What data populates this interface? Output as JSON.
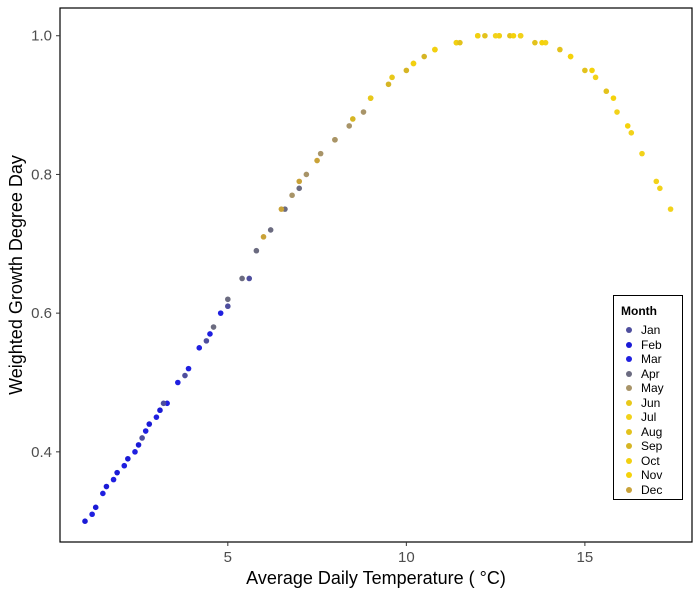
{
  "chart_data": {
    "type": "scatter",
    "title": "",
    "xlabel": "Average Daily Temperature ( °C)",
    "ylabel": "Weighted Growth Degree Day",
    "xlim": [
      0.3,
      18.0
    ],
    "ylim": [
      0.27,
      1.04
    ],
    "x_ticks": [
      5,
      10,
      15
    ],
    "x_tick_labels": [
      "5",
      "10",
      "15"
    ],
    "y_ticks": [
      0.4,
      0.6,
      0.8,
      1.0
    ],
    "y_tick_labels": [
      "0.4",
      "0.6",
      "0.8",
      "1.0"
    ],
    "grid": false,
    "legend_position": "right",
    "legend": {
      "title": "Month",
      "items": [
        {
          "name": "Jan",
          "color": "#4e4e9e"
        },
        {
          "name": "Feb",
          "color": "#1a1ad6"
        },
        {
          "name": "Mar",
          "color": "#1f1fe0"
        },
        {
          "name": "Apr",
          "color": "#6b6b80"
        },
        {
          "name": "May",
          "color": "#a89468"
        },
        {
          "name": "Jun",
          "color": "#e8c81a"
        },
        {
          "name": "Jul",
          "color": "#f2d21a"
        },
        {
          "name": "Aug",
          "color": "#e3c21c"
        },
        {
          "name": "Sep",
          "color": "#d6b524"
        },
        {
          "name": "Oct",
          "color": "#f2d010"
        },
        {
          "name": "Nov",
          "color": "#f5d20a"
        },
        {
          "name": "Dec",
          "color": "#c9a238"
        }
      ]
    },
    "series": [
      {
        "name": "Feb",
        "color": "#1a1ad6",
        "x": [
          1.0,
          1.3,
          1.6,
          1.9,
          2.2,
          2.5,
          2.8,
          3.1
        ],
        "y": [
          0.3,
          0.32,
          0.35,
          0.37,
          0.39,
          0.41,
          0.44,
          0.46
        ]
      },
      {
        "name": "Mar",
        "color": "#1f1fe0",
        "x": [
          1.2,
          1.5,
          1.8,
          2.1,
          2.4,
          2.7,
          3.0,
          3.3,
          3.6,
          3.9,
          4.2,
          4.5,
          4.8
        ],
        "y": [
          0.31,
          0.34,
          0.36,
          0.38,
          0.4,
          0.43,
          0.45,
          0.47,
          0.5,
          0.52,
          0.55,
          0.57,
          0.6
        ]
      },
      {
        "name": "Jan",
        "color": "#4e4e9e",
        "x": [
          2.6,
          3.2,
          3.8,
          4.4,
          5.0,
          5.6
        ],
        "y": [
          0.42,
          0.47,
          0.51,
          0.56,
          0.61,
          0.65
        ]
      },
      {
        "name": "Apr",
        "color": "#6b6b80",
        "x": [
          4.6,
          5.0,
          5.4,
          5.8,
          6.2,
          6.6,
          7.0
        ],
        "y": [
          0.58,
          0.62,
          0.65,
          0.69,
          0.72,
          0.75,
          0.78
        ]
      },
      {
        "name": "Dec",
        "color": "#c9a238",
        "x": [
          6.0,
          6.5,
          7.0,
          7.5,
          8.0
        ],
        "y": [
          0.71,
          0.75,
          0.79,
          0.82,
          0.85
        ]
      },
      {
        "name": "May",
        "color": "#a89468",
        "x": [
          6.8,
          7.2,
          7.6,
          8.0,
          8.4,
          8.8
        ],
        "y": [
          0.77,
          0.8,
          0.83,
          0.85,
          0.87,
          0.89
        ]
      },
      {
        "name": "Sep",
        "color": "#d6b524",
        "x": [
          8.5,
          9.0,
          9.5,
          10.0,
          10.5
        ],
        "y": [
          0.88,
          0.91,
          0.93,
          0.95,
          0.97
        ]
      },
      {
        "name": "Jun",
        "color": "#e8c81a",
        "x": [
          9.0,
          9.6,
          10.2,
          10.8,
          11.4,
          12.0,
          12.6,
          13.2
        ],
        "y": [
          0.91,
          0.94,
          0.96,
          0.98,
          0.99,
          1.0,
          1.0,
          1.0
        ]
      },
      {
        "name": "Oct",
        "color": "#f2d010",
        "x": [
          10.2,
          10.8,
          11.4,
          12.0,
          12.6
        ],
        "y": [
          0.96,
          0.98,
          0.99,
          1.0,
          1.0
        ]
      },
      {
        "name": "Aug",
        "color": "#e3c21c",
        "x": [
          11.5,
          12.2,
          12.9,
          13.6,
          14.3,
          15.0,
          15.6
        ],
        "y": [
          0.99,
          1.0,
          1.0,
          0.99,
          0.98,
          0.95,
          0.92
        ]
      },
      {
        "name": "Jul",
        "color": "#f2d21a",
        "x": [
          12.5,
          13.2,
          13.9,
          14.6,
          15.3,
          15.9,
          16.3,
          16.6,
          17.0,
          17.1,
          17.4
        ],
        "y": [
          1.0,
          1.0,
          0.99,
          0.97,
          0.94,
          0.89,
          0.86,
          0.83,
          0.79,
          0.78,
          0.75
        ]
      },
      {
        "name": "Nov",
        "color": "#f5d20a",
        "x": [
          13.0,
          13.8,
          14.6,
          15.2,
          15.8,
          16.2
        ],
        "y": [
          1.0,
          0.99,
          0.97,
          0.95,
          0.91,
          0.87
        ]
      }
    ]
  }
}
